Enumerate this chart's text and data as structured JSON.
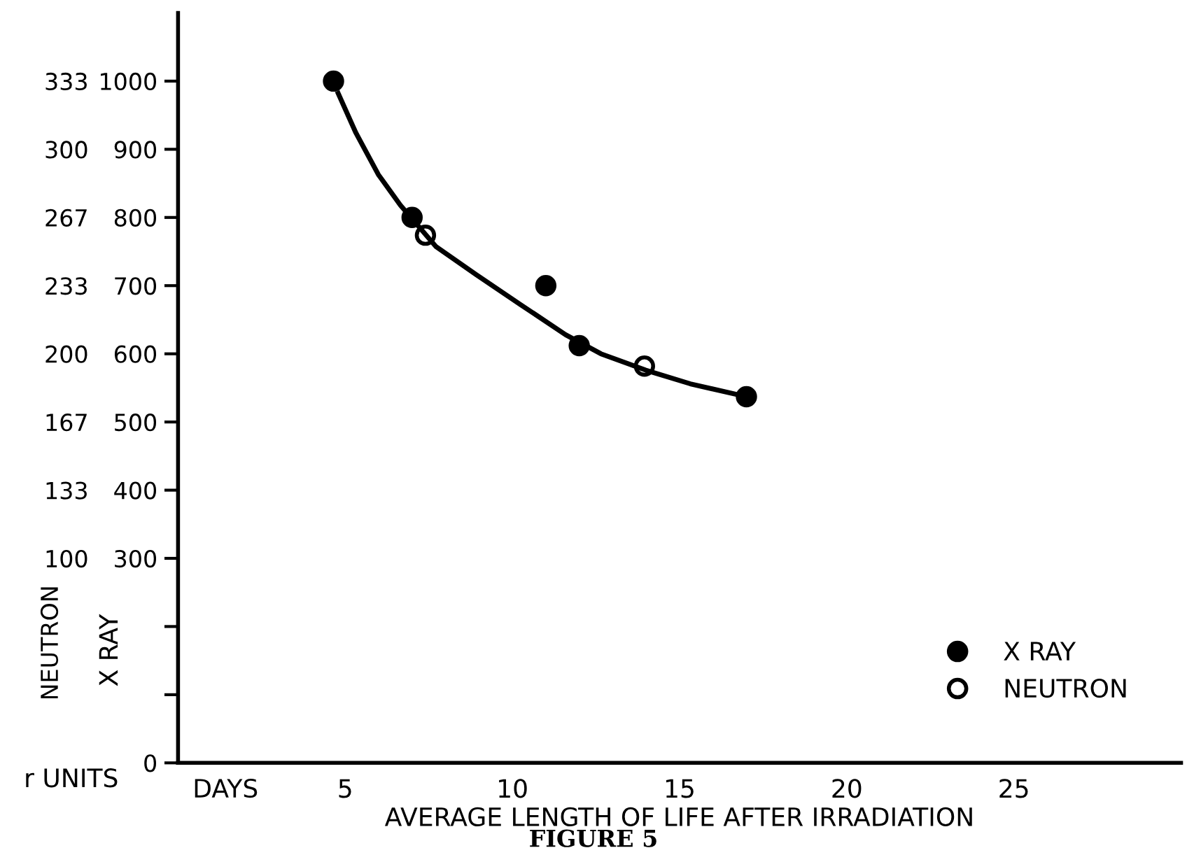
{
  "chart_data": {
    "type": "scatter",
    "title": "FIGURE 5",
    "xlabel": "AVERAGE LENGTH OF LIFE AFTER IRRADIATION",
    "ylabel": "X RAY",
    "y2label": "NEUTRON",
    "annotations": [
      "DAYS",
      "r UNITS"
    ],
    "series": [
      {
        "name": "X RAY",
        "marker": "circle",
        "color": "#000000",
        "x": [
          4.65,
          7.0,
          11.0,
          12.0,
          17.0
        ],
        "values": [
          1000,
          800,
          700,
          612,
          537
        ]
      },
      {
        "name": "NEUTRON",
        "marker": "circle",
        "color": "#ffffff",
        "axis": "y2",
        "x": [
          7.4,
          13.95
        ],
        "values": [
          258,
          194
        ]
      },
      {
        "type": "line",
        "marker": "none",
        "color": "#000000",
        "x": [
          4.79,
          5.32,
          5.99,
          6.65,
          7.72,
          8.92,
          10.25,
          11.59,
          12.65,
          13.99,
          15.32,
          16.65
        ],
        "values": [
          982,
          924,
          863,
          818,
          757,
          716,
          672,
          628,
          600,
          576,
          556,
          541
        ]
      }
    ],
    "xlim": [
      0,
      30
    ],
    "xticks": [
      5,
      10,
      15,
      20,
      25
    ],
    "ylim": [
      0,
      1100
    ],
    "yticks": [
      {
        "value": 0,
        "label": "0"
      },
      {
        "value": 100,
        "label": null
      },
      {
        "value": 200,
        "label": null
      },
      300,
      400,
      500,
      600,
      700,
      800,
      900,
      1000
    ],
    "y2lim": [
      0,
      366.67
    ],
    "y2ticks": [
      100,
      {
        "value": 133.33,
        "label": "133"
      },
      {
        "value": 166.67,
        "label": "167"
      },
      200,
      {
        "value": 233.33,
        "label": "233"
      },
      {
        "value": 266.67,
        "label": "267"
      },
      300,
      {
        "value": 333.33,
        "label": "333"
      }
    ],
    "grid": false,
    "legend": "bottom right"
  }
}
